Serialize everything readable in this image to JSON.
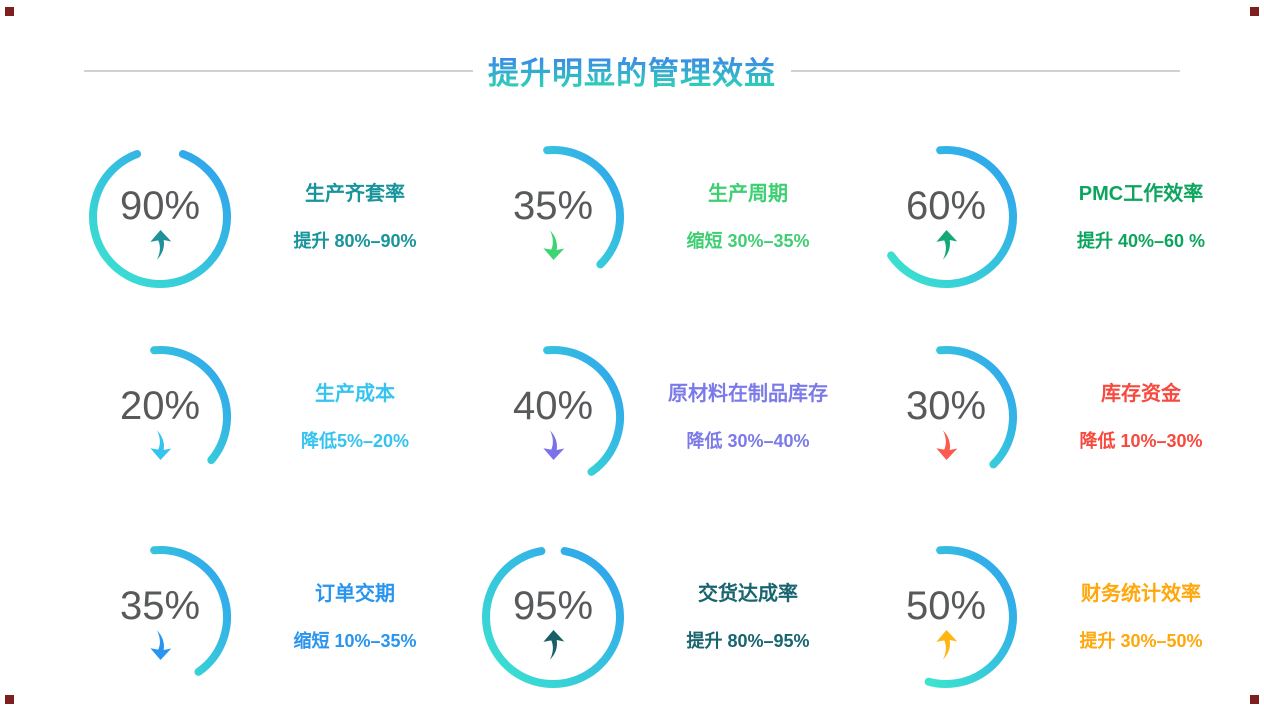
{
  "header": {
    "title": "提升明显的管理效益",
    "title_gradient_top": "#3b7cf2",
    "title_gradient_bottom": "#2ed6b2",
    "divider_color": "#ccd2d6"
  },
  "percent_color": "#58595b",
  "arc_gradient": {
    "blue": "#2f9ff0",
    "aqua": "#3ce5cd"
  },
  "chart_data": {
    "type": "gauge",
    "legend_position": "none",
    "items": [
      {
        "value": "90%",
        "pct": 90,
        "title": "生产齐套率",
        "desc": "提升 80%–90%",
        "direction": "up",
        "color": "#17949c",
        "arrow_color": "#1e9199",
        "arc": {
          "start_deg": 20,
          "sweep_deg": 320
        }
      },
      {
        "value": "35%",
        "pct": 35,
        "title": "生产周期",
        "desc": "缩短 30%–35%",
        "direction": "down",
        "color": "#3ecf72",
        "arrow_color": "#3ed473",
        "arc": {
          "start_deg": -5,
          "sweep_deg": 140
        }
      },
      {
        "value": "60%",
        "pct": 60,
        "title": "PMC工作效率",
        "desc": "提升 40%–60 %",
        "direction": "up",
        "color": "#0da45e",
        "arrow_color": "#14a878",
        "arc": {
          "start_deg": -5,
          "sweep_deg": 240
        }
      },
      {
        "value": "20%",
        "pct": 20,
        "title": "生产成本",
        "desc": "降低5%–20%",
        "direction": "down",
        "color": "#35c3f0",
        "arrow_color": "#35c3f0",
        "arc": {
          "start_deg": -5,
          "sweep_deg": 135
        }
      },
      {
        "value": "40%",
        "pct": 40,
        "title": "原材料在制品库存",
        "desc": "降低 30%–40%",
        "direction": "down",
        "color": "#7b7ae8",
        "arrow_color": "#7b72ea",
        "arc": {
          "start_deg": -5,
          "sweep_deg": 150
        }
      },
      {
        "value": "30%",
        "pct": 30,
        "title": "库存资金",
        "desc": "降低 10%–30%",
        "direction": "down",
        "color": "#f8493e",
        "arrow_color": "#fb5a4e",
        "arc": {
          "start_deg": -5,
          "sweep_deg": 140
        }
      },
      {
        "value": "35%",
        "pct": 35,
        "title": "订单交期",
        "desc": "缩短 10%–35%",
        "direction": "down",
        "color": "#2a95ee",
        "arrow_color": "#2a95ee",
        "arc": {
          "start_deg": -5,
          "sweep_deg": 150
        }
      },
      {
        "value": "95%",
        "pct": 95,
        "title": "交货达成率",
        "desc": "提升 80%–95%",
        "direction": "up",
        "color": "#18656f",
        "arrow_color": "#1a5f68",
        "arc": {
          "start_deg": 10,
          "sweep_deg": 340
        }
      },
      {
        "value": "50%",
        "pct": 50,
        "title": "财务统计效率",
        "desc": "提升 30%–50%",
        "direction": "up",
        "color": "#ffa70b",
        "arrow_color": "#ffb612",
        "arc": {
          "start_deg": -5,
          "sweep_deg": 200
        }
      }
    ]
  }
}
